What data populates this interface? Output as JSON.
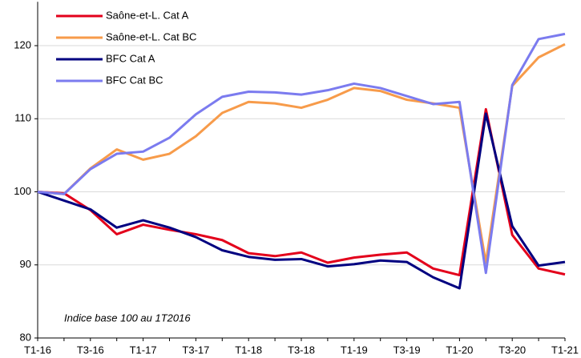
{
  "chart_data": {
    "type": "line",
    "categories": [
      "T1-16",
      null,
      "T3-16",
      null,
      "T1-17",
      null,
      "T3-17",
      null,
      "T1-18",
      null,
      "T3-18",
      null,
      "T1-19",
      null,
      "T3-19",
      null,
      "T1-20",
      null,
      "T3-20",
      null,
      "T1-21"
    ],
    "series": [
      {
        "name": "Saône-et-L.  Cat A",
        "color": "#e3001b",
        "values": [
          100,
          99.8,
          97.5,
          94.2,
          95.5,
          94.8,
          94.2,
          93.4,
          91.6,
          91.2,
          91.7,
          90.3,
          91.0,
          91.4,
          91.7,
          89.5,
          88.6,
          111.3,
          94.1,
          89.5,
          88.7
        ]
      },
      {
        "name": "Saône-et-L.  Cat BC",
        "color": "#f79b4a",
        "values": [
          100,
          99.7,
          103.2,
          105.8,
          104.4,
          105.2,
          107.6,
          110.8,
          112.3,
          112.1,
          111.5,
          112.6,
          114.2,
          113.8,
          112.6,
          112.1,
          111.5,
          90.3,
          114.5,
          118.4,
          120.2
        ]
      },
      {
        "name": "BFC Cat A",
        "color": "#000080",
        "values": [
          100,
          98.8,
          97.6,
          95.1,
          96.1,
          95.1,
          93.8,
          92.0,
          91.1,
          90.7,
          90.8,
          89.8,
          90.1,
          90.6,
          90.4,
          88.3,
          86.8,
          110.7,
          95.3,
          89.9,
          90.4
        ]
      },
      {
        "name": "BFC Cat BC",
        "color": "#7b7bef",
        "values": [
          100,
          99.7,
          103.1,
          105.2,
          105.5,
          107.4,
          110.6,
          113.0,
          113.7,
          113.6,
          113.3,
          113.9,
          114.8,
          114.2,
          113.1,
          112.0,
          112.3,
          88.9,
          114.6,
          120.9,
          121.6
        ]
      }
    ],
    "ylim": [
      80,
      126
    ],
    "yticks": [
      80,
      90,
      100,
      110,
      120
    ],
    "grid": true,
    "legend": "top-left",
    "annotation": "Indice base 100 au 1T2016"
  }
}
